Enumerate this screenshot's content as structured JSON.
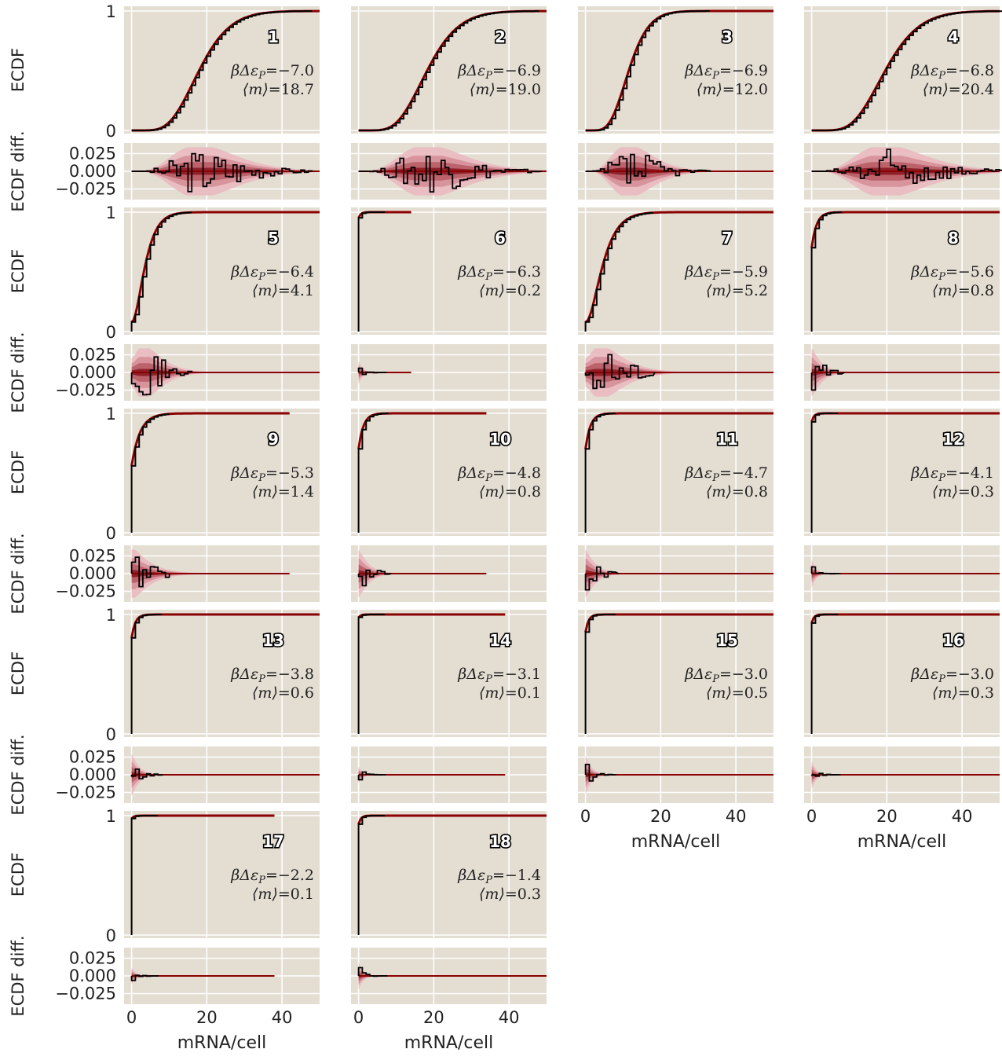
{
  "labels": {
    "ecdf_ylabel": "ECDF",
    "diff_ylabel": "ECDF diff.",
    "xlabel": "mRNA/cell",
    "energy_prefix": "βΔε",
    "energy_sub": "P",
    "mean_label": "⟨m⟩",
    "equals": "="
  },
  "colors": {
    "panel_bg": "#e3ddd2",
    "grid": "#ffffff",
    "data_line": "#000000",
    "theory_line": "#8b0000",
    "band_outer": "#e9b9bf",
    "band_mid": "#d58f98",
    "band_inner": "#b85c66",
    "band_core": "#8b1a24"
  },
  "chart_data": {
    "type": "line",
    "layout": "5 rows x 4 columns grid; each cell has an ECDF panel above an ECDF-difference panel",
    "ecdf_axis": {
      "ylim": [
        0,
        1
      ],
      "yticks": [
        "0",
        "1"
      ]
    },
    "diff_axis": {
      "ylim": [
        -0.04,
        0.04
      ],
      "yticks": [
        "0.025",
        "0.000",
        "−0.025"
      ]
    },
    "x_axis": {
      "xlim": [
        -2,
        50
      ],
      "xticks": [
        "0",
        "20",
        "40"
      ]
    },
    "grid": true,
    "series_styles": {
      "data": "black step line",
      "theory": "dark red line with shaded credible bands"
    },
    "panels": [
      {
        "id": "1",
        "energy": "−7.0",
        "mean": "18.7",
        "max_x": 50
      },
      {
        "id": "2",
        "energy": "−6.9",
        "mean": "19.0",
        "max_x": 50
      },
      {
        "id": "3",
        "energy": "−6.9",
        "mean": "12.0",
        "max_x": 50
      },
      {
        "id": "4",
        "energy": "−6.8",
        "mean": "20.4",
        "max_x": 50
      },
      {
        "id": "5",
        "energy": "−6.4",
        "mean": "4.1",
        "max_x": 50
      },
      {
        "id": "6",
        "energy": "−6.3",
        "mean": "0.2",
        "max_x": 14
      },
      {
        "id": "7",
        "energy": "−5.9",
        "mean": "5.2",
        "max_x": 50
      },
      {
        "id": "8",
        "energy": "−5.6",
        "mean": "0.8",
        "max_x": 50
      },
      {
        "id": "9",
        "energy": "−5.3",
        "mean": "1.4",
        "max_x": 42
      },
      {
        "id": "10",
        "energy": "−4.8",
        "mean": "0.8",
        "max_x": 34
      },
      {
        "id": "11",
        "energy": "−4.7",
        "mean": "0.8",
        "max_x": 50
      },
      {
        "id": "12",
        "energy": "−4.1",
        "mean": "0.3",
        "max_x": 50
      },
      {
        "id": "13",
        "energy": "−3.8",
        "mean": "0.6",
        "max_x": 50
      },
      {
        "id": "14",
        "energy": "−3.1",
        "mean": "0.1",
        "max_x": 39
      },
      {
        "id": "15",
        "energy": "−3.0",
        "mean": "0.5",
        "max_x": 50
      },
      {
        "id": "16",
        "energy": "−3.0",
        "mean": "0.3",
        "max_x": 50
      },
      {
        "id": "17",
        "energy": "−2.2",
        "mean": "0.1",
        "max_x": 38
      },
      {
        "id": "18",
        "energy": "−1.4",
        "mean": "0.3",
        "max_x": 50
      }
    ]
  }
}
